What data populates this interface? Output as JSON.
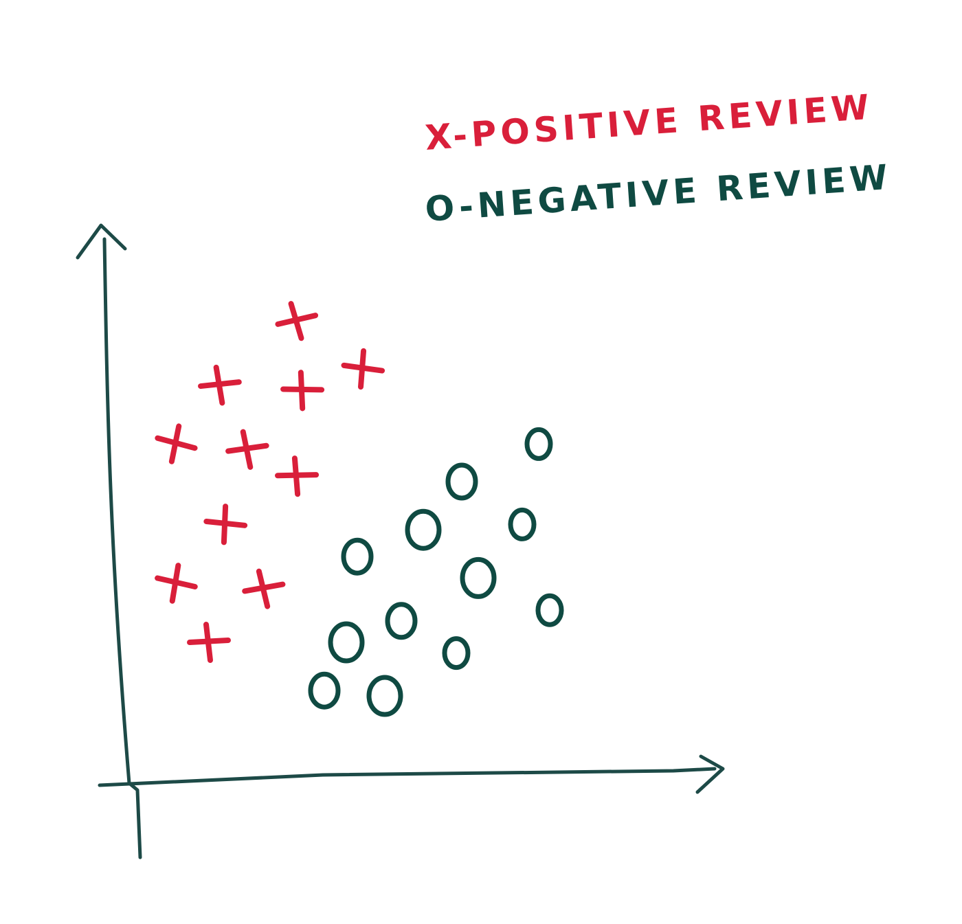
{
  "colors": {
    "positive": "#d91f3a",
    "negative": "#0f4a42",
    "axis": "#1d4a47"
  },
  "legend": {
    "positive_label": "X-POSITIVE REVIEW",
    "negative_label": "O-NEGATIVE REVIEW",
    "position": "top-right"
  },
  "chart_data": {
    "type": "scatter",
    "title": "",
    "xlabel": "",
    "ylabel": "",
    "grid": false,
    "xlim": [
      0,
      100
    ],
    "ylim": [
      0,
      100
    ],
    "series": [
      {
        "name": "X-POSITIVE REVIEW",
        "marker": "plus",
        "points": [
          {
            "x": 29,
            "y": 85
          },
          {
            "x": 15,
            "y": 73
          },
          {
            "x": 30,
            "y": 72
          },
          {
            "x": 41,
            "y": 76
          },
          {
            "x": 7,
            "y": 62
          },
          {
            "x": 20,
            "y": 61
          },
          {
            "x": 29,
            "y": 56
          },
          {
            "x": 16,
            "y": 47
          },
          {
            "x": 7,
            "y": 36
          },
          {
            "x": 23,
            "y": 35
          },
          {
            "x": 13,
            "y": 25
          }
        ]
      },
      {
        "name": "O-NEGATIVE REVIEW",
        "marker": "circle",
        "points": [
          {
            "x": 73,
            "y": 62
          },
          {
            "x": 59,
            "y": 55
          },
          {
            "x": 52,
            "y": 46
          },
          {
            "x": 70,
            "y": 47
          },
          {
            "x": 40,
            "y": 41
          },
          {
            "x": 62,
            "y": 37
          },
          {
            "x": 75,
            "y": 31
          },
          {
            "x": 48,
            "y": 29
          },
          {
            "x": 38,
            "y": 25
          },
          {
            "x": 58,
            "y": 23
          },
          {
            "x": 34,
            "y": 16
          },
          {
            "x": 45,
            "y": 15
          }
        ]
      }
    ]
  }
}
